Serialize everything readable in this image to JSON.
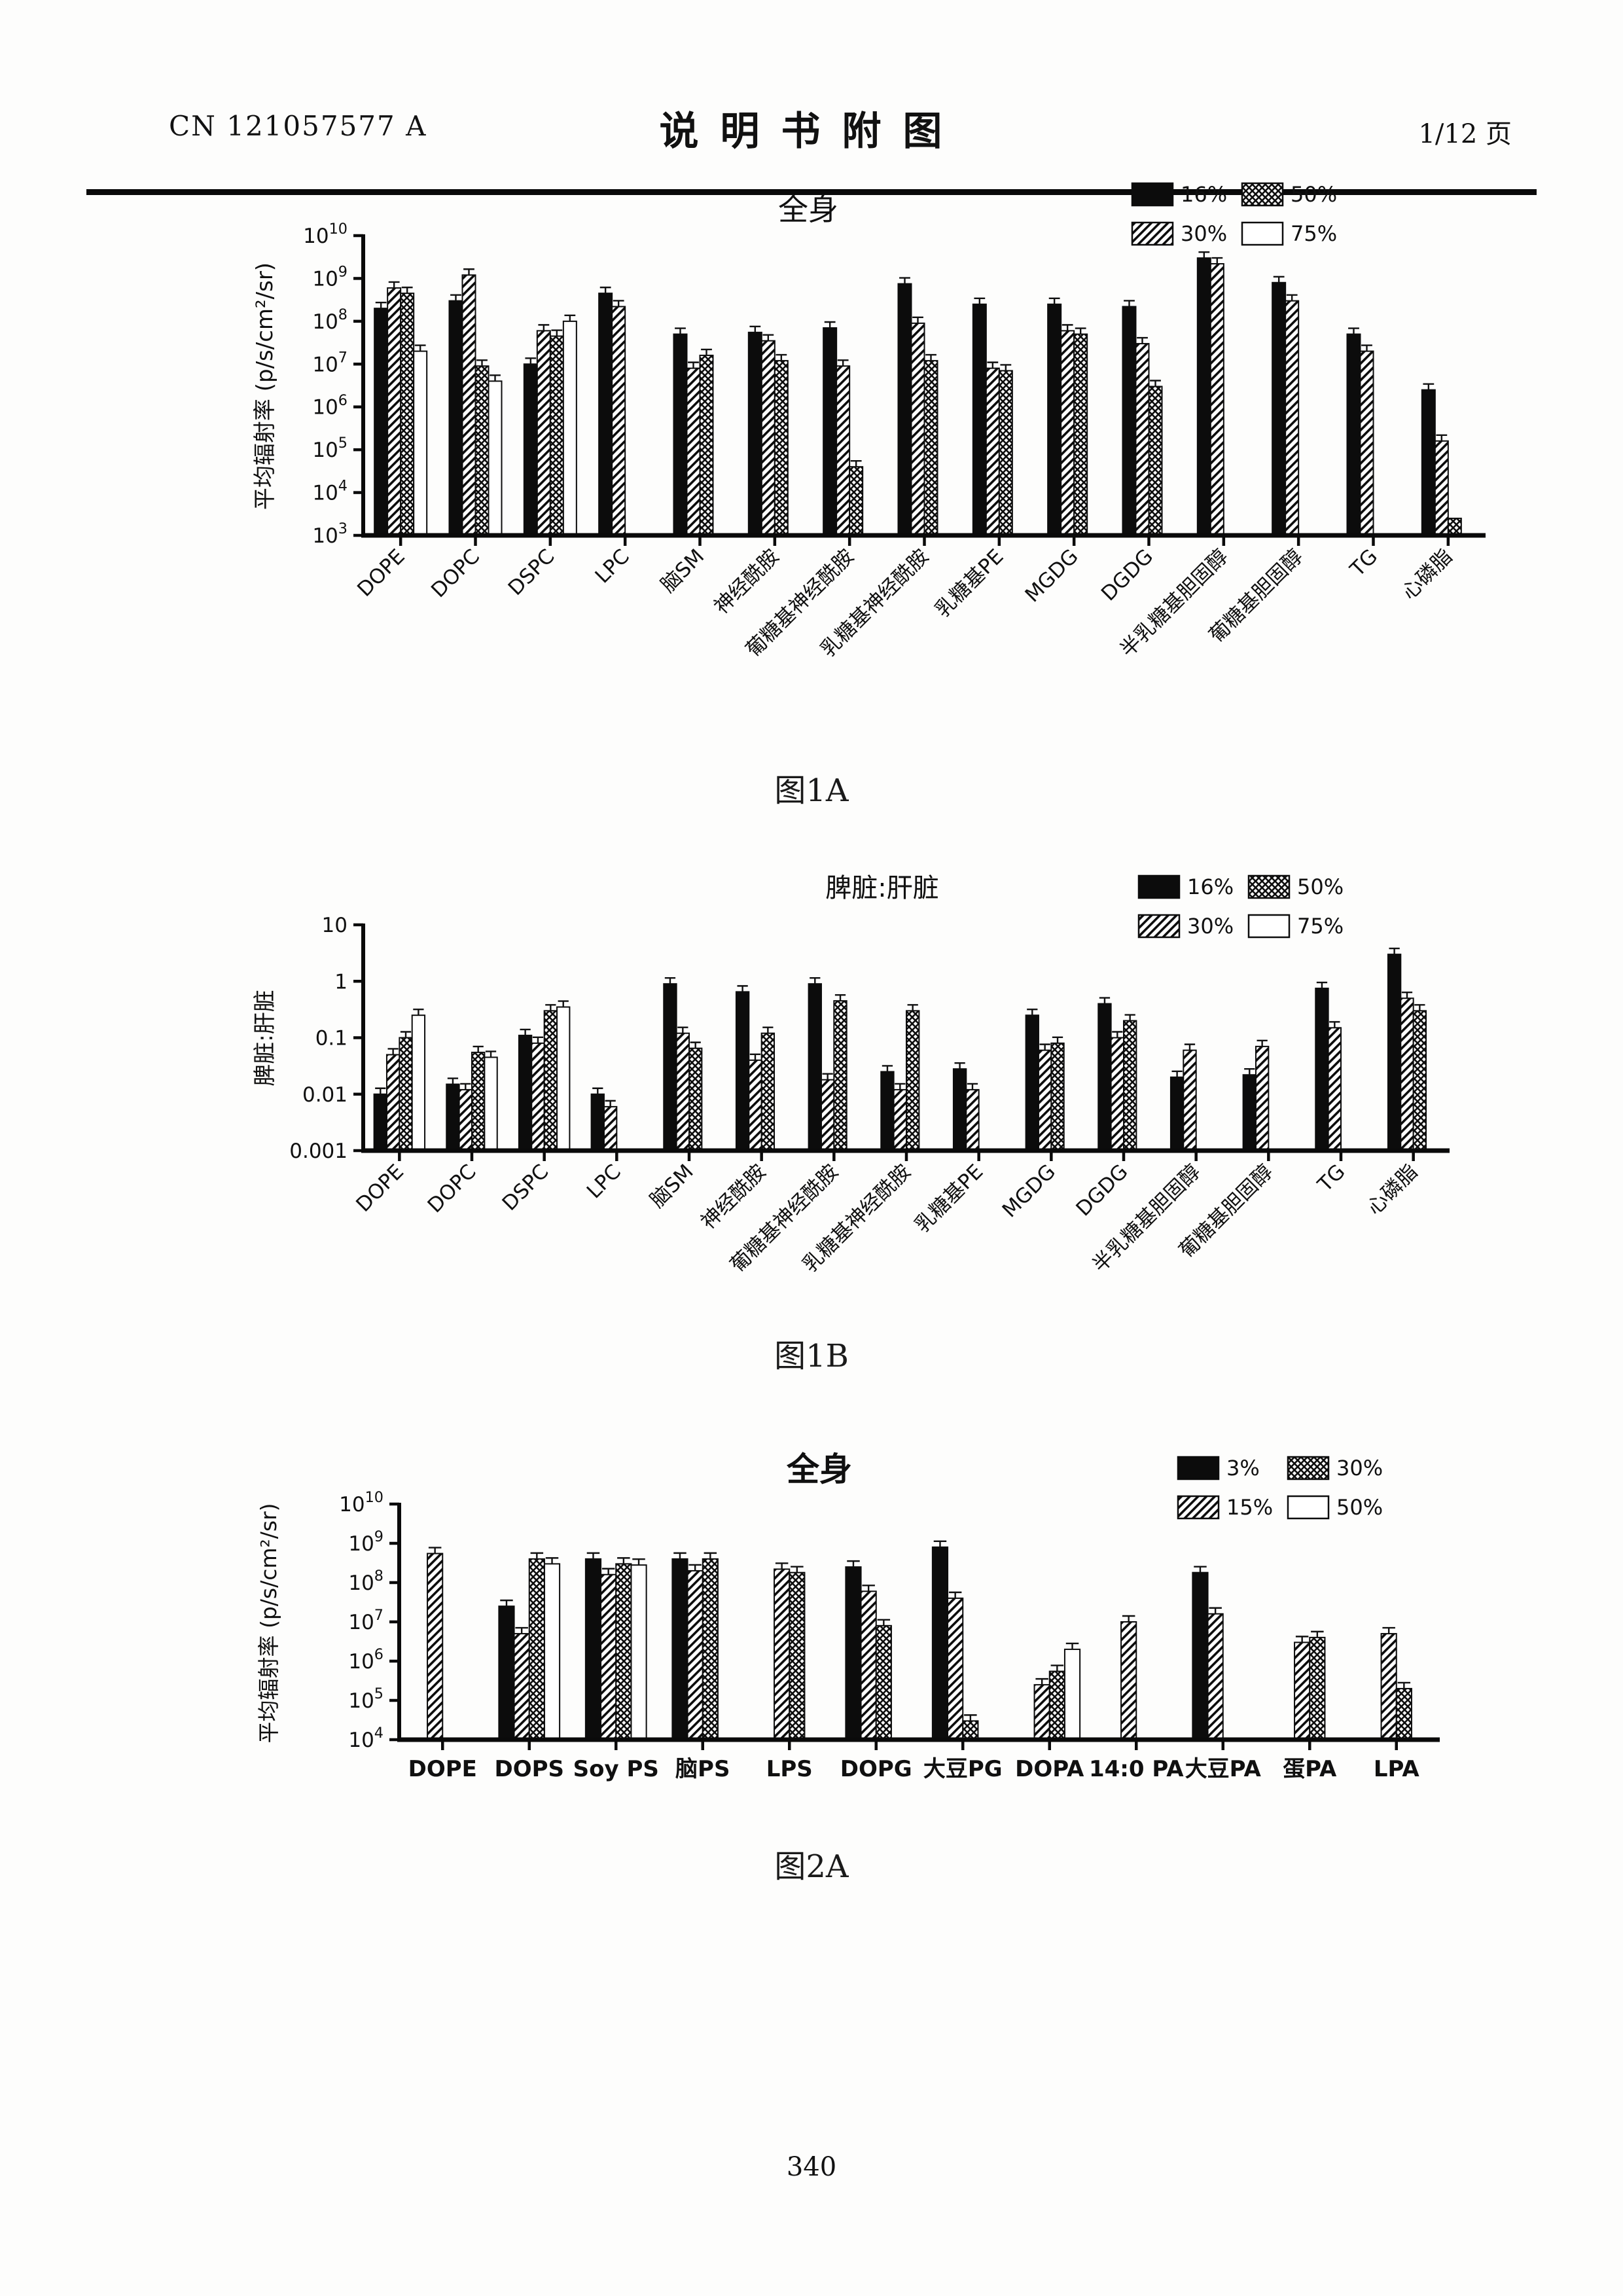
{
  "header": {
    "patent_number": "CN 121057577 A",
    "doc_title": "说明书附图",
    "page_indicator": "1/12 页"
  },
  "footer": {
    "page_number": "340"
  },
  "figures": [
    {
      "caption": "图1A"
    },
    {
      "caption": "图1B"
    },
    {
      "caption": "图2A"
    }
  ],
  "chart_data": [
    {
      "id": "fig1A",
      "type": "bar",
      "yscale": "log",
      "title": "全身",
      "ylabel": "平均辐射率 (p/s/cm²/sr)",
      "ylim": [
        1000,
        10000000000
      ],
      "grid": false,
      "legend_position": "top-right",
      "yticks": [
        {
          "v": 10000000000,
          "label": "10^10"
        },
        {
          "v": 1000000000,
          "label": "10^9"
        },
        {
          "v": 100000000,
          "label": "10^8"
        },
        {
          "v": 10000000,
          "label": "10^7"
        },
        {
          "v": 1000000,
          "label": "10^6"
        },
        {
          "v": 100000,
          "label": "10^5"
        },
        {
          "v": 10000,
          "label": "10^4"
        },
        {
          "v": 1000,
          "label": "10^3"
        }
      ],
      "categories": [
        "DOPE",
        "DOPC",
        "DSPC",
        "LPC",
        "脑SM",
        "神经酰胺",
        "葡糖基神经酰胺",
        "乳糖基神经酰胺",
        "乳糖基PE",
        "MGDG",
        "DGDG",
        "半乳糖基胆固醇",
        "葡糖基胆固醇",
        "TG",
        "心磷脂"
      ],
      "legend_rows": [
        [
          {
            "label": "16%",
            "pattern": "solid"
          },
          {
            "label": "50%",
            "pattern": "dots"
          }
        ],
        [
          {
            "label": "30%",
            "pattern": "diag"
          },
          {
            "label": "75%",
            "pattern": "open"
          }
        ]
      ],
      "series": [
        {
          "name": "16%",
          "pattern": "solid",
          "values": [
            200000000,
            300000000,
            10000000,
            450000000,
            50000000,
            55000000,
            70000000,
            750000000,
            250000000,
            250000000,
            220000000,
            3000000000,
            800000000,
            50000000,
            2500000
          ]
        },
        {
          "name": "30%",
          "pattern": "diag",
          "values": [
            600000000,
            1200000000,
            60000000,
            220000000,
            8000000,
            35000000,
            9000000,
            90000000,
            8000000,
            60000000,
            30000000,
            2200000000,
            300000000,
            20000000,
            160000
          ]
        },
        {
          "name": "50%",
          "pattern": "dots",
          "values": [
            450000000,
            9000000,
            45000000,
            null,
            16000000,
            12000000,
            40000,
            12000000,
            7000000,
            50000000,
            3000000,
            null,
            null,
            null,
            2500
          ]
        },
        {
          "name": "75%",
          "pattern": "open",
          "values": [
            20000000,
            4000000,
            100000000,
            null,
            null,
            null,
            null,
            null,
            null,
            null,
            null,
            null,
            null,
            null,
            null
          ]
        }
      ]
    },
    {
      "id": "fig1B",
      "type": "bar",
      "yscale": "log",
      "title": "脾脏:肝脏",
      "ylabel": "脾脏:肝脏",
      "ylim": [
        0.001,
        10
      ],
      "grid": false,
      "legend_position": "top-right",
      "yticks": [
        {
          "v": 10,
          "label": "10"
        },
        {
          "v": 1,
          "label": "1"
        },
        {
          "v": 0.1,
          "label": "0.1"
        },
        {
          "v": 0.01,
          "label": "0.01"
        },
        {
          "v": 0.001,
          "label": "0.001"
        }
      ],
      "categories": [
        "DOPE",
        "DOPC",
        "DSPC",
        "LPC",
        "脑SM",
        "神经酰胺",
        "葡糖基神经酰胺",
        "乳糖基神经酰胺",
        "乳糖基PE",
        "MGDG",
        "DGDG",
        "半乳糖基胆固醇",
        "葡糖基胆固醇",
        "TG",
        "心磷脂"
      ],
      "legend_rows": [
        [
          {
            "label": "16%",
            "pattern": "solid"
          },
          {
            "label": "50%",
            "pattern": "dots"
          }
        ],
        [
          {
            "label": "30%",
            "pattern": "diag"
          },
          {
            "label": "75%",
            "pattern": "open"
          }
        ]
      ],
      "series": [
        {
          "name": "16%",
          "pattern": "solid",
          "values": [
            0.01,
            0.015,
            0.11,
            0.01,
            0.9,
            0.65,
            0.9,
            0.025,
            0.028,
            0.25,
            0.4,
            0.02,
            0.022,
            0.75,
            3
          ]
        },
        {
          "name": "30%",
          "pattern": "diag",
          "values": [
            0.05,
            0.012,
            0.08,
            0.006,
            0.12,
            0.04,
            0.018,
            0.012,
            0.012,
            0.06,
            0.1,
            0.06,
            0.07,
            0.15,
            0.5
          ]
        },
        {
          "name": "50%",
          "pattern": "dots",
          "values": [
            0.1,
            0.055,
            0.3,
            null,
            0.065,
            0.12,
            0.45,
            0.3,
            null,
            0.08,
            0.2,
            null,
            null,
            null,
            0.3
          ]
        },
        {
          "name": "75%",
          "pattern": "open",
          "values": [
            0.25,
            0.045,
            0.35,
            null,
            null,
            null,
            null,
            null,
            null,
            null,
            null,
            null,
            null,
            null,
            null
          ]
        }
      ]
    },
    {
      "id": "fig2A",
      "type": "bar",
      "yscale": "log",
      "title": "全身",
      "ylabel": "平均辐射率 (p/s/cm²/sr)",
      "ylim": [
        10000,
        10000000000
      ],
      "grid": false,
      "legend_position": "top-right",
      "yticks": [
        {
          "v": 10000000000,
          "label": "10^10"
        },
        {
          "v": 1000000000,
          "label": "10^9"
        },
        {
          "v": 100000000,
          "label": "10^8"
        },
        {
          "v": 10000000,
          "label": "10^7"
        },
        {
          "v": 1000000,
          "label": "10^6"
        },
        {
          "v": 100000,
          "label": "10^5"
        },
        {
          "v": 10000,
          "label": "10^4"
        }
      ],
      "categories": [
        "DOPE",
        "DOPS",
        "Soy PS",
        "脑PS",
        "LPS",
        "DOPG",
        "大豆PG",
        "DOPA",
        "14:0 PA",
        "大豆PA",
        "蛋PA",
        "LPA"
      ],
      "legend_rows": [
        [
          {
            "label": "3%",
            "pattern": "solid"
          },
          {
            "label": "30%",
            "pattern": "dots"
          }
        ],
        [
          {
            "label": "15%",
            "pattern": "diag"
          },
          {
            "label": "50%",
            "pattern": "open"
          }
        ]
      ],
      "series": [
        {
          "name": "3%",
          "pattern": "solid",
          "values": [
            null,
            25000000,
            400000000,
            400000000,
            null,
            250000000,
            800000000,
            null,
            null,
            180000000,
            null,
            null
          ]
        },
        {
          "name": "15%",
          "pattern": "diag",
          "values": [
            550000000,
            5000000,
            160000000,
            200000000,
            220000000,
            60000000,
            40000000,
            250000,
            10000000,
            16000000,
            3000000,
            5000000
          ]
        },
        {
          "name": "30%",
          "pattern": "dots",
          "values": [
            null,
            400000000,
            300000000,
            400000000,
            180000000,
            8000000,
            30000,
            550000,
            null,
            null,
            4000000,
            200000
          ]
        },
        {
          "name": "50%",
          "pattern": "open",
          "values": [
            null,
            300000000,
            280000000,
            null,
            null,
            null,
            null,
            2000000,
            null,
            null,
            null,
            null
          ]
        }
      ]
    }
  ]
}
